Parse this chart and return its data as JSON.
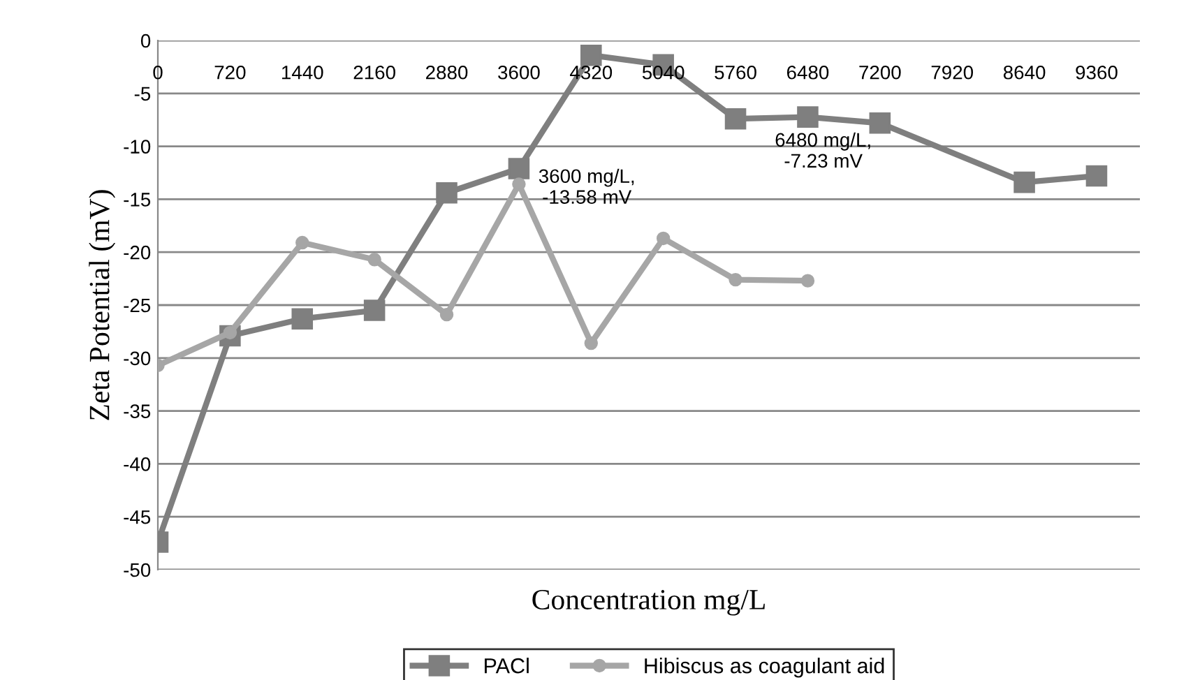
{
  "chart_data": {
    "type": "line",
    "xlabel": "Concentration mg/L",
    "ylabel": "Zeta Potential (mV)",
    "categories": [
      "0",
      "720",
      "1440",
      "2160",
      "2880",
      "3600",
      "4320",
      "5040",
      "5760",
      "6480",
      "7200",
      "7920",
      "8640",
      "9360"
    ],
    "series": [
      {
        "name": "PACl",
        "color": "#7f7f7f",
        "marker": "square",
        "values": [
          -47.4,
          -27.9,
          -26.3,
          -25.5,
          -14.4,
          -12.1,
          -1.4,
          -2.3,
          -7.4,
          -7.23,
          -7.8,
          null,
          -13.4,
          -12.8
        ]
      },
      {
        "name": "Hibiscus as coagulant aid",
        "color": "#a6a6a6",
        "marker": "circle",
        "values": [
          -30.7,
          -27.6,
          -19.1,
          -20.7,
          -25.9,
          -13.58,
          -28.6,
          -18.7,
          -22.6,
          -22.7,
          null,
          null,
          null,
          null
        ]
      }
    ],
    "annotations": [
      {
        "text": "3600 mg/L,\n-13.58 mV",
        "x": "3600",
        "y": -13.58
      },
      {
        "text": "6480 mg/L,\n-7.23 mV",
        "x": "6480",
        "y": -7.23
      }
    ],
    "ylim": [
      -50,
      0
    ],
    "yticks": [
      -50,
      -45,
      -40,
      -35,
      -30,
      -25,
      -20,
      -15,
      -10,
      -5,
      0
    ],
    "grid": "y",
    "legend": "bottom"
  }
}
